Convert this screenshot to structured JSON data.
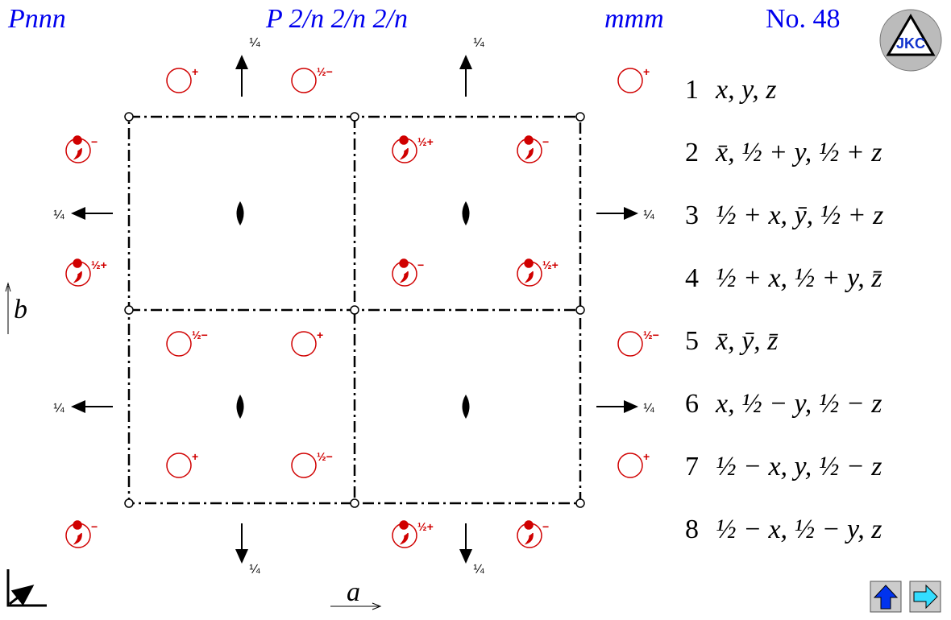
{
  "header": {
    "symbol": "Pnnn",
    "full_symbol": "P 2/n 2/n 2/n",
    "point_group": "mmm",
    "number": "No. 48",
    "logo": "JKC"
  },
  "axes": {
    "a": "a",
    "b": "b"
  },
  "screw_heights": [
    "¼",
    "¼",
    "¼",
    "¼",
    "¼",
    "¼",
    "¼",
    "¼"
  ],
  "positions": [
    "+",
    "½−",
    "+",
    "−",
    "½+",
    "−",
    "½+",
    "−",
    "½+",
    "½−",
    "+",
    "½−",
    "+",
    "½−",
    "+",
    "−",
    "½+",
    "−"
  ],
  "operations": [
    {
      "n": "1",
      "expr": "x, y, z"
    },
    {
      "n": "2",
      "expr": "x̄, ½ + y, ½ + z"
    },
    {
      "n": "3",
      "expr": "½ + x, ȳ, ½ + z"
    },
    {
      "n": "4",
      "expr": "½ + x, ½ + y, z̄"
    },
    {
      "n": "5",
      "expr": "x̄, ȳ, z̄"
    },
    {
      "n": "6",
      "expr": "x, ½ − y, ½ − z"
    },
    {
      "n": "7",
      "expr": "½ − x, y, ½ − z"
    },
    {
      "n": "8",
      "expr": "½ − x, ½ − y, z"
    }
  ]
}
